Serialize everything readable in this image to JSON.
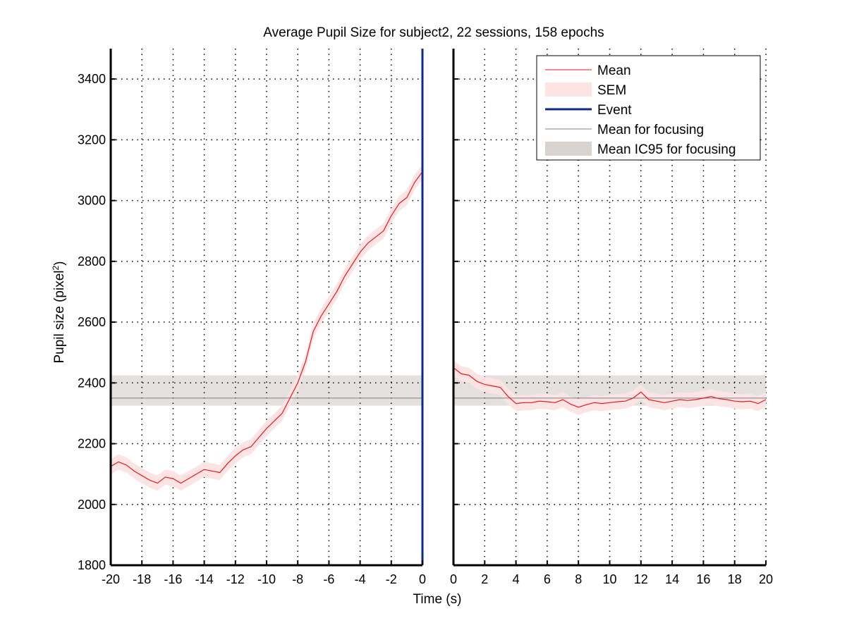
{
  "chart_data": {
    "type": "line",
    "title": "Average Pupil Size for subject2, 22 sessions, 158 epochs",
    "xlabel": "Time (s)",
    "ylabel": {
      "base": "Pupil size (pixel",
      "sup": "2",
      "tail": ")"
    },
    "ylim": [
      1800,
      3500
    ],
    "yticks": [
      1800,
      2000,
      2200,
      2400,
      2600,
      2800,
      3000,
      3200,
      3400
    ],
    "grid": true,
    "legend_position": "top-right",
    "panels": [
      {
        "name": "before-event",
        "xlim": [
          -20,
          0
        ],
        "xticks": [
          -20,
          -18,
          -16,
          -14,
          -12,
          -10,
          -8,
          -6,
          -4,
          -2,
          0
        ]
      },
      {
        "name": "after-event",
        "xlim": [
          0,
          20
        ],
        "xticks": [
          0,
          2,
          4,
          6,
          8,
          10,
          12,
          14,
          16,
          18,
          20
        ]
      }
    ],
    "legend": [
      {
        "label": "Mean",
        "color": "#e41a1a",
        "style": "thin-line"
      },
      {
        "label": "SEM",
        "color": "#fde4e4",
        "style": "band"
      },
      {
        "label": "Event",
        "color": "#0d2a8c",
        "style": "thick-line"
      },
      {
        "label": "Mean for focusing",
        "color": "#808080",
        "style": "thin-line"
      },
      {
        "label": "Mean IC95 for focusing",
        "color": "#d8d3cf",
        "style": "band"
      }
    ],
    "focusing": {
      "mean": 2350,
      "ic95": [
        2325,
        2425
      ]
    },
    "sem": 25,
    "event_x": 0,
    "series": [
      {
        "name": "Mean (before event)",
        "panel": 0,
        "x": [
          -20,
          -19.5,
          -19,
          -18.5,
          -18,
          -17.5,
          -17,
          -16.5,
          -16,
          -15.5,
          -15,
          -14.5,
          -14,
          -13.5,
          -13,
          -12.5,
          -12,
          -11.5,
          -11,
          -10.5,
          -10,
          -9.5,
          -9,
          -8.5,
          -8,
          -7.5,
          -7,
          -6.5,
          -6,
          -5.5,
          -5,
          -4.5,
          -4,
          -3.5,
          -3,
          -2.5,
          -2,
          -1.5,
          -1,
          -0.5,
          0
        ],
        "y": [
          2125,
          2140,
          2130,
          2110,
          2095,
          2080,
          2070,
          2090,
          2085,
          2070,
          2085,
          2100,
          2115,
          2110,
          2105,
          2135,
          2160,
          2180,
          2190,
          2220,
          2250,
          2275,
          2300,
          2350,
          2400,
          2470,
          2570,
          2620,
          2660,
          2700,
          2750,
          2790,
          2830,
          2860,
          2880,
          2900,
          2950,
          2990,
          3010,
          3060,
          3095
        ]
      },
      {
        "name": "Mean (after event)",
        "panel": 1,
        "x": [
          0,
          0.5,
          1,
          1.5,
          2,
          2.5,
          3,
          3.5,
          4,
          4.5,
          5,
          5.5,
          6,
          6.5,
          7,
          7.5,
          8,
          8.5,
          9,
          9.5,
          10,
          10.5,
          11,
          11.5,
          12,
          12.5,
          13,
          13.5,
          14,
          14.5,
          15,
          15.5,
          16,
          16.5,
          17,
          17.5,
          18,
          18.5,
          19,
          19.5,
          20
        ],
        "y": [
          2450,
          2430,
          2425,
          2405,
          2395,
          2390,
          2385,
          2355,
          2332,
          2335,
          2335,
          2340,
          2338,
          2335,
          2345,
          2330,
          2320,
          2328,
          2335,
          2332,
          2335,
          2338,
          2340,
          2350,
          2370,
          2345,
          2340,
          2335,
          2340,
          2345,
          2342,
          2345,
          2350,
          2355,
          2348,
          2345,
          2340,
          2338,
          2340,
          2332,
          2345
        ]
      }
    ]
  }
}
